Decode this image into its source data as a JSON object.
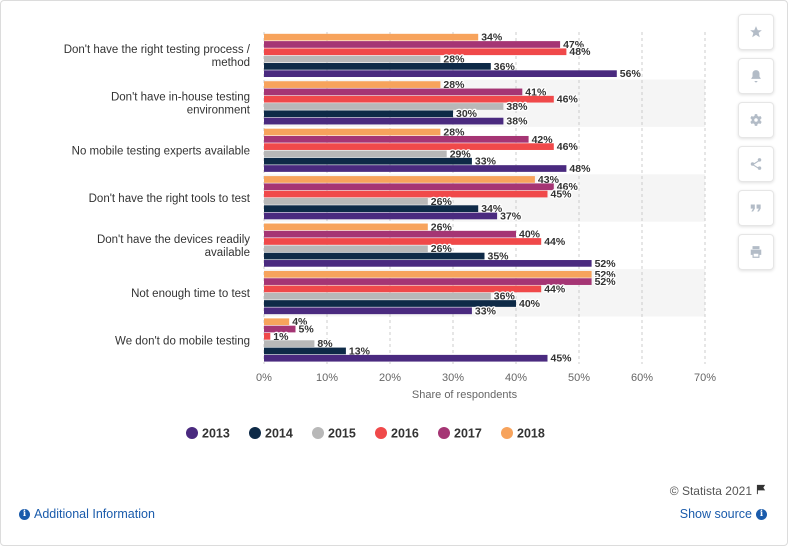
{
  "chart_data": {
    "type": "bar",
    "orientation": "horizontal",
    "categories": [
      "Don't have the right testing process / method",
      "Don't have in-house testing environment",
      "No mobile testing experts available",
      "Don't have the right tools to test",
      "Don't have the devices readily available",
      "Not enough time to test",
      "We don't do mobile testing"
    ],
    "series": [
      {
        "name": "2013",
        "color": "#4a2a7f",
        "values": [
          56,
          38,
          48,
          37,
          52,
          33,
          45
        ]
      },
      {
        "name": "2014",
        "color": "#0e2a47",
        "values": [
          36,
          30,
          33,
          34,
          35,
          40,
          13
        ]
      },
      {
        "name": "2015",
        "color": "#b8b8b8",
        "values": [
          28,
          38,
          29,
          26,
          26,
          36,
          8
        ]
      },
      {
        "name": "2016",
        "color": "#f0494a",
        "values": [
          48,
          46,
          46,
          45,
          44,
          44,
          1
        ]
      },
      {
        "name": "2017",
        "color": "#a53574",
        "values": [
          47,
          41,
          42,
          46,
          40,
          52,
          5
        ]
      },
      {
        "name": "2018",
        "color": "#f7a35c",
        "values": [
          34,
          28,
          28,
          43,
          26,
          52,
          4
        ]
      }
    ],
    "value_suffix": "%",
    "xlabel": "Share of respondents",
    "xlim": [
      0,
      70
    ],
    "ticks": [
      "0%",
      "10%",
      "20%",
      "30%",
      "40%",
      "50%",
      "60%",
      "70%"
    ],
    "grid": "vertical dashed",
    "legend_position": "bottom"
  },
  "toolbar": {
    "buttons": [
      {
        "name": "favorite-button",
        "icon": "star-icon"
      },
      {
        "name": "alert-button",
        "icon": "bell-icon"
      },
      {
        "name": "settings-button",
        "icon": "gear-icon"
      },
      {
        "name": "share-button",
        "icon": "share-icon"
      },
      {
        "name": "cite-button",
        "icon": "quote-icon"
      },
      {
        "name": "print-button",
        "icon": "print-icon"
      }
    ]
  },
  "footer": {
    "copyright": "© Statista 2021",
    "additional_info": "Additional Information",
    "show_source": "Show source"
  }
}
